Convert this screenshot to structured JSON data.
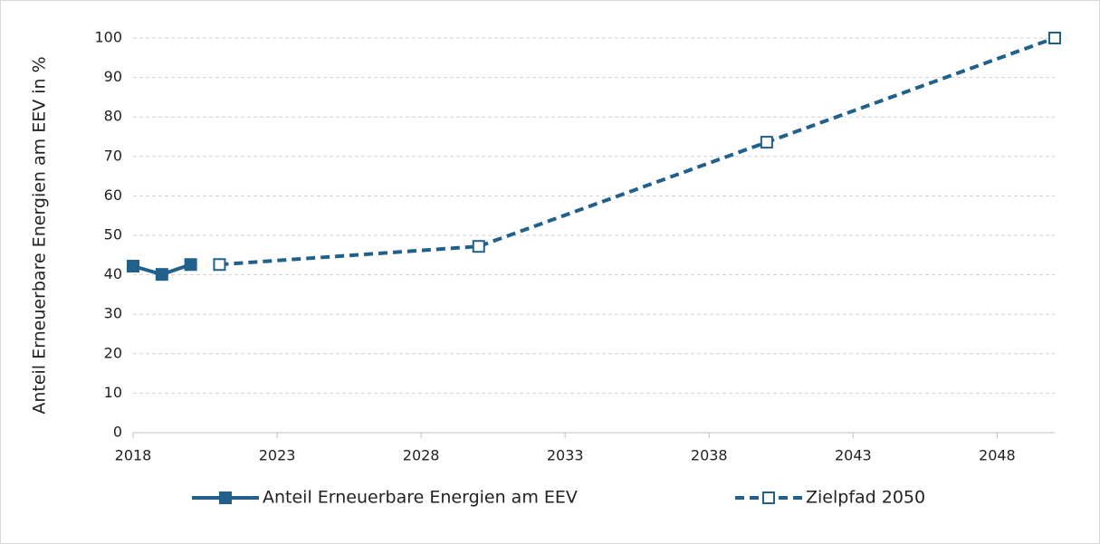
{
  "chart_data": {
    "type": "line",
    "ylabel": "Anteil Erneuerbare Energien am EEV in %",
    "xlim": [
      2018,
      2050
    ],
    "xticks": [
      2018,
      2023,
      2028,
      2033,
      2038,
      2043,
      2048
    ],
    "ylim": [
      0,
      100
    ],
    "yticks": [
      0,
      10,
      20,
      30,
      40,
      50,
      60,
      70,
      80,
      90,
      100
    ],
    "grid": true,
    "legend": "bottom",
    "series": [
      {
        "name": "Anteil Erneuerbare Energien am EEV",
        "color": "#22608c",
        "dashed": false,
        "marker": "square-filled",
        "x": [
          2018,
          2019,
          2020
        ],
        "values": [
          42.2,
          40.1,
          42.6
        ]
      },
      {
        "name": "Zielpfad 2050",
        "color": "#22608c",
        "dashed": true,
        "marker": "square-open",
        "x": [
          2021,
          2030,
          2040,
          2050
        ],
        "values": [
          42.6,
          47.2,
          73.6,
          100
        ]
      }
    ]
  }
}
